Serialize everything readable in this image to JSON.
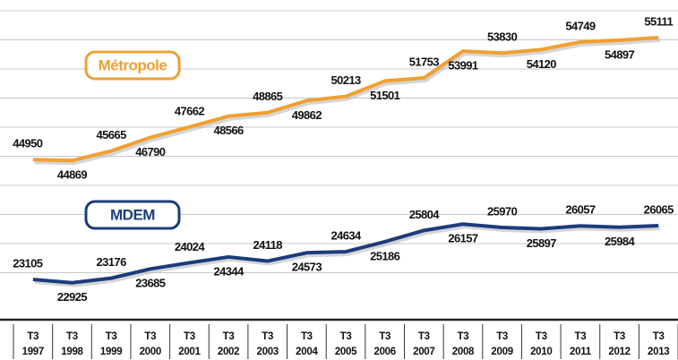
{
  "chart_data": {
    "type": "line",
    "categories": [
      "T3 1997",
      "T3 1998",
      "T3 1999",
      "T3 2000",
      "T3 2001",
      "T3 2002",
      "T3 2003",
      "T3 2004",
      "T3 2005",
      "T3 2006",
      "T3 2007",
      "T3 2008",
      "T3 2009",
      "T3 2010",
      "T3 2011",
      "T3 2012",
      "T3 2013"
    ],
    "series": [
      {
        "name": "Métropole",
        "color": "#f0a030",
        "values": [
          44950,
          44869,
          45665,
          46790,
          47662,
          48566,
          48865,
          49862,
          50213,
          51501,
          51753,
          53991,
          53830,
          54120,
          54749,
          54897,
          55111
        ]
      },
      {
        "name": "MDEM",
        "color": "#1b3c7c",
        "axis": "y2",
        "values": [
          23105,
          22925,
          23176,
          23685,
          24024,
          24344,
          24118,
          24573,
          24634,
          25186,
          25804,
          26157,
          25970,
          25897,
          26057,
          25984,
          26065
        ]
      }
    ],
    "ylim": [
      32500,
      58250
    ],
    "y2lim": [
      21480,
      38500
    ],
    "grid": true
  }
}
